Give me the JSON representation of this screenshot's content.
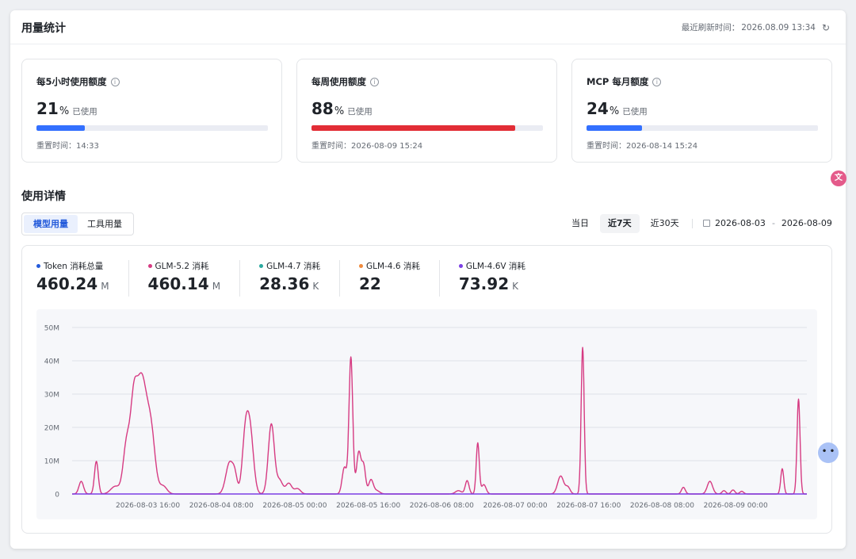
{
  "header": {
    "title": "用量统计",
    "refresh_label": "最近刷新时间：",
    "refresh_time": "2026.08.09 13:34",
    "refresh_icon": "refresh-icon"
  },
  "quota_cards": [
    {
      "title": "每5小时使用额度",
      "percent": "21",
      "percent_sym": "%",
      "used_label": "已使用",
      "reset_label": "重置时间：",
      "reset_time": "14:33",
      "fill_fraction": 0.21,
      "color": "#3370ff"
    },
    {
      "title": "每周使用额度",
      "percent": "88",
      "percent_sym": "%",
      "used_label": "已使用",
      "reset_label": "重置时间：",
      "reset_time": "2026-08-09 15:24",
      "fill_fraction": 0.88,
      "color": "#e22d36"
    },
    {
      "title": "MCP 每月额度",
      "percent": "24",
      "percent_sym": "%",
      "used_label": "已使用",
      "reset_label": "重置时间：",
      "reset_time": "2026-08-14 15:24",
      "fill_fraction": 0.24,
      "color": "#3370ff"
    }
  ],
  "details": {
    "title": "使用详情",
    "tabs": [
      "模型用量",
      "工具用量"
    ],
    "active_tab": 0,
    "ranges": [
      "当日",
      "近7天",
      "近30天"
    ],
    "active_range": 1,
    "date_start": "2026-08-03",
    "date_sep": "-",
    "date_end": "2026-08-09"
  },
  "stats": [
    {
      "name": "Token 消耗总量",
      "value": "460.24",
      "unit": "M",
      "color": "#245bdb"
    },
    {
      "name": "GLM-5.2 消耗",
      "value": "460.14",
      "unit": "M",
      "color": "#d63b82"
    },
    {
      "name": "GLM-4.7 消耗",
      "value": "28.36",
      "unit": "K",
      "color": "#2aa99f"
    },
    {
      "name": "GLM-4.6 消耗",
      "value": "22",
      "unit": "",
      "color": "#f08a3c"
    },
    {
      "name": "GLM-4.6V 消耗",
      "value": "73.92",
      "unit": "K",
      "color": "#7b3fe4"
    }
  ],
  "chart_data": {
    "type": "line",
    "y_ticks": [
      "0",
      "10M",
      "20M",
      "30M",
      "40M",
      "50M"
    ],
    "ylim": [
      0,
      50
    ],
    "yunit": "M",
    "x_ticks": [
      "2026-08-03 16:00",
      "2026-08-04 08:00",
      "2026-08-05 00:00",
      "2026-08-05 16:00",
      "2026-08-06 08:00",
      "2026-08-07 00:00",
      "2026-08-07 16:00",
      "2026-08-08 08:00",
      "2026-08-09 00:00"
    ],
    "x_tick_hours": [
      16,
      32,
      48,
      64,
      80,
      96,
      112,
      128,
      144
    ],
    "x_range_hours": [
      0,
      160
    ],
    "grid": true,
    "series": [
      {
        "name": "GLM-5.2",
        "color": "#d63b82",
        "peaks": [
          [
            2.4,
            3.8,
            0.6
          ],
          [
            6.4,
            9.8,
            0.5
          ],
          [
            11.4,
            2.3,
            1.2
          ],
          [
            14.4,
            14.5,
            0.9
          ],
          [
            16.2,
            16.0,
            0.8
          ],
          [
            18.3,
            35.5,
            1.6
          ],
          [
            21.0,
            13.0,
            1.0
          ],
          [
            24.0,
            2.4,
            1.0
          ],
          [
            41.6,
            9.5,
            1.0
          ],
          [
            43.0,
            4.0,
            0.6
          ],
          [
            45.7,
            15.5,
            0.8
          ],
          [
            47.0,
            18.0,
            0.9
          ],
          [
            52.6,
            21.0,
            0.8
          ],
          [
            54.8,
            4.0,
            0.8
          ],
          [
            57.2,
            3.2,
            0.8
          ],
          [
            59.5,
            1.6,
            0.8
          ],
          [
            71.9,
            8.0,
            0.6
          ],
          [
            73.6,
            41.0,
            0.5
          ],
          [
            75.7,
            12.6,
            0.6
          ],
          [
            77.0,
            8.0,
            0.5
          ],
          [
            78.9,
            4.2,
            0.6
          ],
          [
            80.4,
            1.0,
            0.8
          ],
          [
            102.0,
            1.0,
            0.8
          ],
          [
            104.3,
            4.0,
            0.5
          ],
          [
            107.1,
            15.3,
            0.4
          ],
          [
            108.7,
            2.8,
            0.6
          ],
          [
            129.0,
            5.4,
            0.8
          ],
          [
            130.9,
            2.0,
            0.6
          ],
          [
            134.8,
            44.0,
            0.4
          ],
          [
            161.4,
            2.0,
            0.5
          ],
          [
            168.4,
            3.8,
            0.7
          ],
          [
            172.1,
            1.0,
            0.5
          ],
          [
            174.5,
            1.2,
            0.5
          ],
          [
            176.8,
            0.8,
            0.5
          ],
          [
            187.5,
            7.6,
            0.4
          ],
          [
            191.8,
            28.5,
            0.4
          ]
        ]
      },
      {
        "name": "GLM-4.6V",
        "color": "#7b3fe4",
        "peaks": []
      }
    ]
  },
  "icons": {
    "translate": "translate-icon",
    "assistant": "assistant-bot-icon",
    "info": "info-icon",
    "calendar": "calendar-icon"
  }
}
